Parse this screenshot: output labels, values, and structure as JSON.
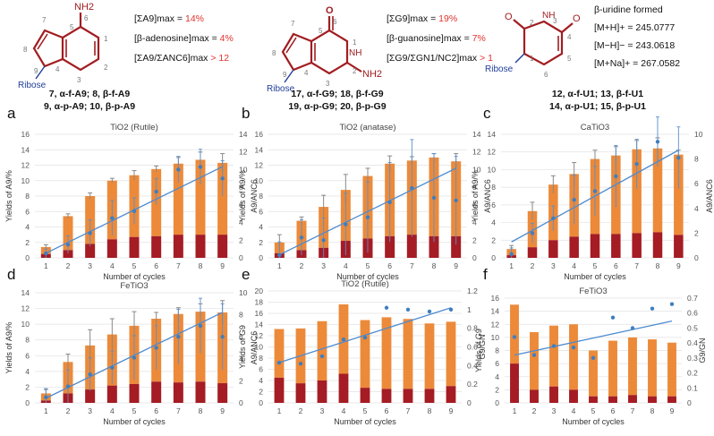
{
  "molecules": [
    {
      "id": "adenosine",
      "substituent_label": "NH2",
      "ring_numbers": [
        "7",
        "5",
        "6",
        "1",
        "2",
        "3",
        "4",
        "9",
        "8"
      ],
      "ribose_label": "Ribose",
      "info": [
        {
          "text": "[ΣA9]max = ",
          "value": "14%"
        },
        {
          "text": "[β-adenosine]max = ",
          "value": "4%"
        },
        {
          "text": "[ΣA9/ΣANC6]max ",
          "value": "> 12"
        }
      ],
      "caption_lines": [
        "7, α-f-A9; 8, β-f-A9",
        "9, α-p-A9; 10, β-p-A9"
      ]
    },
    {
      "id": "guanosine",
      "substituent_label": "O",
      "substituent2_label": "NH2",
      "nh_label": "NH",
      "ring_numbers": [
        "7",
        "5",
        "6",
        "1",
        "2",
        "3",
        "4",
        "9",
        "8"
      ],
      "ribose_label": "Ribose",
      "info": [
        {
          "text": "[ΣG9]max = ",
          "value": "19%"
        },
        {
          "text": "[β-guanosine]max = ",
          "value": "7%"
        },
        {
          "text": "[ΣG9/ΣGN1/NC2]max ",
          "value": "> 1"
        }
      ],
      "caption_lines": [
        "17, α-f-G9; 18, β-f-G9",
        "19, α-p-G9; 20, β-p-G9"
      ]
    },
    {
      "id": "uridine",
      "ring_numbers": [
        "2",
        "3",
        "4",
        "5",
        "6",
        "1"
      ],
      "o_labels": [
        "O",
        "O"
      ],
      "nh_label": "NH",
      "ribose_label": "Ribose",
      "info": [
        {
          "text": "β-uridine formed",
          "value": ""
        },
        {
          "text": "[M+H]+ = 245.0777",
          "value": ""
        },
        {
          "text": "[M−H]− = 243.0618",
          "value": ""
        },
        {
          "text": "[M+Na]+ = 267.0582",
          "value": ""
        }
      ],
      "caption_lines": [
        "12, α-f-U1; 13, β-f-U1",
        "14, α-p-U1; 15, β-p-U1"
      ]
    }
  ],
  "colors": {
    "dark_red": "#a51c24",
    "orange": "#ec8a3a",
    "blue_point": "#3e7fc1",
    "trend_line": "#4d8bd0",
    "molecule_red": "#a11d21",
    "molecule_blue": "#1f3d99",
    "highlight_red": "#e0322e",
    "axis_gray": "#9a9a9a",
    "grid_gray": "#e2e2e2"
  },
  "chart_data": [
    {
      "panel": "a",
      "type": "bar",
      "title": "TiO2 (Rutile)",
      "xlabel": "Number of cycles",
      "ylabel": "Yields of A9/%",
      "y2label": "A9/ANC6",
      "categories": [
        1,
        2,
        3,
        4,
        5,
        6,
        7,
        8,
        9
      ],
      "ylim": [
        0,
        16
      ],
      "yticks": [
        0,
        2,
        4,
        6,
        8,
        10,
        12,
        14,
        16
      ],
      "y2lim": [
        0,
        14
      ],
      "y2ticks": [
        0,
        2,
        4,
        6,
        8,
        10,
        12,
        14
      ],
      "grid": true,
      "series": [
        {
          "values": [
            0.5,
            1.0,
            1.8,
            2.4,
            2.7,
            2.8,
            3.0,
            3.0,
            3.0
          ]
        },
        {
          "values": [
            1.4,
            5.4,
            8.0,
            10.0,
            10.7,
            11.5,
            12.2,
            12.7,
            12.3
          ]
        },
        {
          "values": [
            0.5,
            1.5,
            2.8,
            4.5,
            5.3,
            7.5,
            10.0,
            10.3,
            9.0
          ]
        }
      ],
      "error_bars": [
        0.3,
        0.3,
        0.4,
        0.3,
        0.6,
        0.4,
        0.8,
        1.0,
        1.2
      ],
      "ratio_error_bars": [
        0.5,
        1.0,
        1.5,
        2.0,
        1.5,
        1.5,
        1.5,
        2.0,
        2.0
      ],
      "trend": [
        [
          1,
          0.6
        ],
        [
          9,
          11.8
        ]
      ]
    },
    {
      "panel": "b",
      "type": "bar",
      "title": "TiO2 (anatase)",
      "xlabel": "Number of cycles",
      "ylabel": "Yields of A9/%",
      "y2label": "A9/ANC6",
      "categories": [
        1,
        2,
        3,
        4,
        5,
        6,
        7,
        8,
        9
      ],
      "ylim": [
        0,
        16
      ],
      "yticks": [
        0,
        2,
        4,
        6,
        8,
        10,
        12,
        14,
        16
      ],
      "y2lim": [
        0,
        14
      ],
      "y2ticks": [
        0,
        2,
        4,
        6,
        8,
        10,
        12,
        14
      ],
      "grid": true,
      "series": [
        {
          "values": [
            0.6,
            1.0,
            1.3,
            2.2,
            2.5,
            2.8,
            3.0,
            2.8,
            2.8
          ]
        },
        {
          "values": [
            2.0,
            4.8,
            6.6,
            8.8,
            10.6,
            12.2,
            12.6,
            13.0,
            12.5
          ]
        },
        {
          "values": [
            0.3,
            2.3,
            2.0,
            3.8,
            4.6,
            6.3,
            7.9,
            6.8,
            6.5
          ]
        }
      ],
      "error_bars": [
        1.0,
        0.5,
        1.5,
        2.0,
        1.0,
        1.0,
        0.5,
        0.5,
        1.0
      ],
      "ratio_error_bars": [
        1.5,
        2.0,
        2.5,
        3.5,
        4.0,
        4.5,
        5.5,
        5.0,
        5.0
      ],
      "trend": [
        [
          1,
          0.4
        ],
        [
          9,
          11.6
        ]
      ]
    },
    {
      "panel": "c",
      "type": "bar",
      "title": "CaTiO3",
      "xlabel": "Number of cycles",
      "ylabel": "Yields of A9/%",
      "y2label": "A9/ANC6",
      "categories": [
        1,
        2,
        3,
        4,
        5,
        6,
        7,
        8,
        9
      ],
      "ylim": [
        0,
        14
      ],
      "yticks": [
        0,
        2,
        4,
        6,
        8,
        10,
        12,
        14
      ],
      "y2lim": [
        0,
        10
      ],
      "y2ticks": [
        0,
        2,
        4,
        6,
        8,
        10
      ],
      "grid": true,
      "series": [
        {
          "values": [
            0.3,
            1.2,
            2.0,
            2.4,
            2.7,
            2.7,
            2.8,
            2.9,
            2.6
          ]
        },
        {
          "values": [
            1.0,
            5.3,
            8.3,
            9.5,
            11.2,
            11.6,
            12.3,
            12.4,
            11.7
          ]
        },
        {
          "values": [
            0.3,
            2.0,
            3.2,
            4.7,
            5.4,
            6.6,
            7.6,
            9.4,
            8.1
          ]
        }
      ],
      "error_bars": [
        0.4,
        1.0,
        1.0,
        1.3,
        1.0,
        1.0,
        1.0,
        1.2,
        0.5
      ],
      "ratio_error_bars": [
        0.5,
        0.8,
        1.0,
        2.0,
        2.0,
        2.5,
        2.0,
        2.0,
        2.5
      ],
      "trend": [
        [
          1,
          1.8
        ],
        [
          9,
          12.2
        ]
      ]
    },
    {
      "panel": "d",
      "type": "bar",
      "title": "FeTiO3",
      "xlabel": "Number of cycles",
      "ylabel": "Yields of A9/%",
      "y2label": "A9/ANC6",
      "categories": [
        1,
        2,
        3,
        4,
        5,
        6,
        7,
        8,
        9
      ],
      "ylim": [
        0,
        14
      ],
      "yticks": [
        0,
        2,
        4,
        6,
        8,
        10,
        12,
        14
      ],
      "y2lim": [
        0,
        10
      ],
      "y2ticks": [
        0,
        2,
        4,
        6,
        8,
        10
      ],
      "grid": true,
      "series": [
        {
          "values": [
            0.3,
            1.2,
            1.7,
            2.2,
            2.4,
            2.7,
            2.6,
            2.7,
            2.5
          ]
        },
        {
          "values": [
            1.2,
            5.2,
            7.3,
            8.7,
            9.8,
            10.7,
            11.3,
            11.6,
            11.5
          ]
        },
        {
          "values": [
            0.5,
            1.5,
            2.6,
            3.2,
            4.1,
            5.0,
            6.0,
            7.0,
            6.0
          ]
        }
      ],
      "error_bars": [
        0.5,
        1.0,
        2.0,
        2.0,
        1.8,
        0.8,
        0.8,
        1.0,
        1.5
      ],
      "ratio_error_bars": [
        0.8,
        1.5,
        1.5,
        1.5,
        2.0,
        2.0,
        2.5,
        2.5,
        3.0
      ],
      "trend": [
        [
          1,
          0.6
        ],
        [
          9,
          11.5
        ]
      ]
    },
    {
      "panel": "e",
      "type": "bar",
      "title": "TiO2 (Rutile)",
      "xlabel": "Number of cycles",
      "ylabel": "Yields of G9",
      "y2label": "G9/GN",
      "categories": [
        1,
        2,
        3,
        4,
        5,
        6,
        7,
        8,
        9
      ],
      "ylim": [
        0,
        20
      ],
      "yticks": [
        0,
        2,
        4,
        6,
        8,
        10,
        12,
        14,
        16,
        18,
        20
      ],
      "y2lim": [
        0,
        1.2
      ],
      "y2ticks": [
        0,
        0.2,
        0.4,
        0.6,
        0.8,
        1.0,
        1.2
      ],
      "grid": true,
      "series": [
        {
          "values": [
            4.5,
            3.5,
            4.0,
            5.2,
            2.7,
            2.5,
            2.5,
            2.5,
            3.0
          ]
        },
        {
          "values": [
            13.2,
            13.3,
            14.6,
            17.6,
            14.8,
            15.3,
            15.0,
            14.2,
            14.5
          ]
        },
        {
          "values": [
            0.43,
            0.42,
            0.5,
            0.68,
            0.7,
            1.02,
            1.0,
            0.98,
            1.0
          ]
        }
      ],
      "trend": [
        [
          1,
          7.2
        ],
        [
          9,
          17.0
        ]
      ]
    },
    {
      "panel": "f",
      "type": "bar",
      "title": "FeTiO3",
      "xlabel": "Number of cycles",
      "ylabel": "Yields of G9",
      "y2label": "G9/GN",
      "categories": [
        1,
        2,
        3,
        4,
        5,
        6,
        7,
        8,
        9
      ],
      "ylim": [
        0,
        16
      ],
      "yticks": [
        0,
        2,
        4,
        6,
        8,
        10,
        12,
        14,
        16
      ],
      "y2lim": [
        0,
        0.7
      ],
      "y2ticks": [
        0,
        0.1,
        0.2,
        0.3,
        0.4,
        0.5,
        0.6,
        0.7
      ],
      "grid": true,
      "series": [
        {
          "values": [
            6.0,
            2.0,
            2.5,
            2.0,
            1.0,
            1.0,
            1.2,
            1.0,
            1.0
          ]
        },
        {
          "values": [
            15.0,
            10.8,
            11.8,
            12.0,
            8.0,
            9.5,
            10.0,
            9.7,
            9.2
          ]
        },
        {
          "values": [
            0.44,
            0.32,
            0.38,
            0.37,
            0.3,
            0.57,
            0.5,
            0.63,
            0.66
          ]
        }
      ],
      "trend": [
        [
          1,
          7.3
        ],
        [
          9,
          12.5
        ]
      ]
    }
  ]
}
